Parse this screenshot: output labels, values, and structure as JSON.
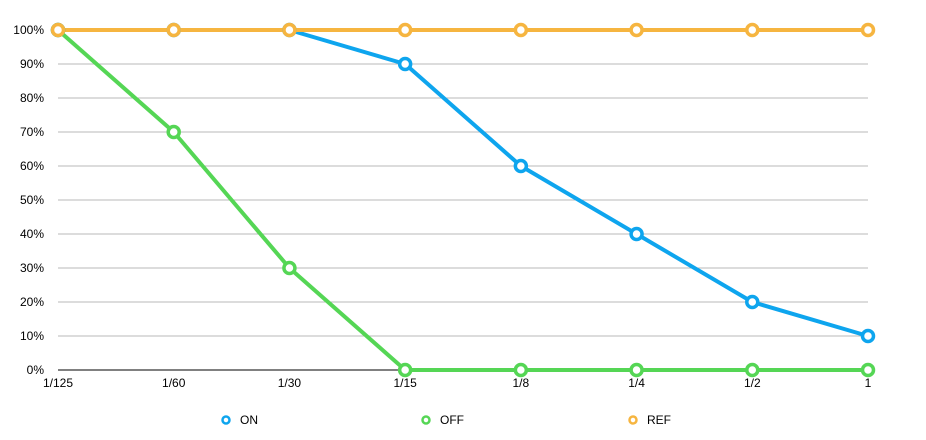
{
  "chart_data": {
    "type": "line",
    "title": "",
    "xlabel": "",
    "ylabel": "",
    "categories": [
      "1/125",
      "1/60",
      "1/30",
      "1/15",
      "1/8",
      "1/4",
      "1/2",
      "1"
    ],
    "ylim": [
      0,
      100
    ],
    "y_ticks": [
      "0%",
      "10%",
      "20%",
      "30%",
      "40%",
      "50%",
      "60%",
      "70%",
      "80%",
      "90%",
      "100%"
    ],
    "grid": true,
    "legend_position": "bottom",
    "series": [
      {
        "name": "ON",
        "color": "#0ea5ee",
        "values": [
          100,
          100,
          100,
          90,
          60,
          40,
          20,
          10
        ]
      },
      {
        "name": "OFF",
        "color": "#55d655",
        "values": [
          100,
          70,
          30,
          0,
          0,
          0,
          0,
          0
        ]
      },
      {
        "name": "REF",
        "color": "#f6b540",
        "values": [
          100,
          100,
          100,
          100,
          100,
          100,
          100,
          100
        ]
      }
    ]
  }
}
